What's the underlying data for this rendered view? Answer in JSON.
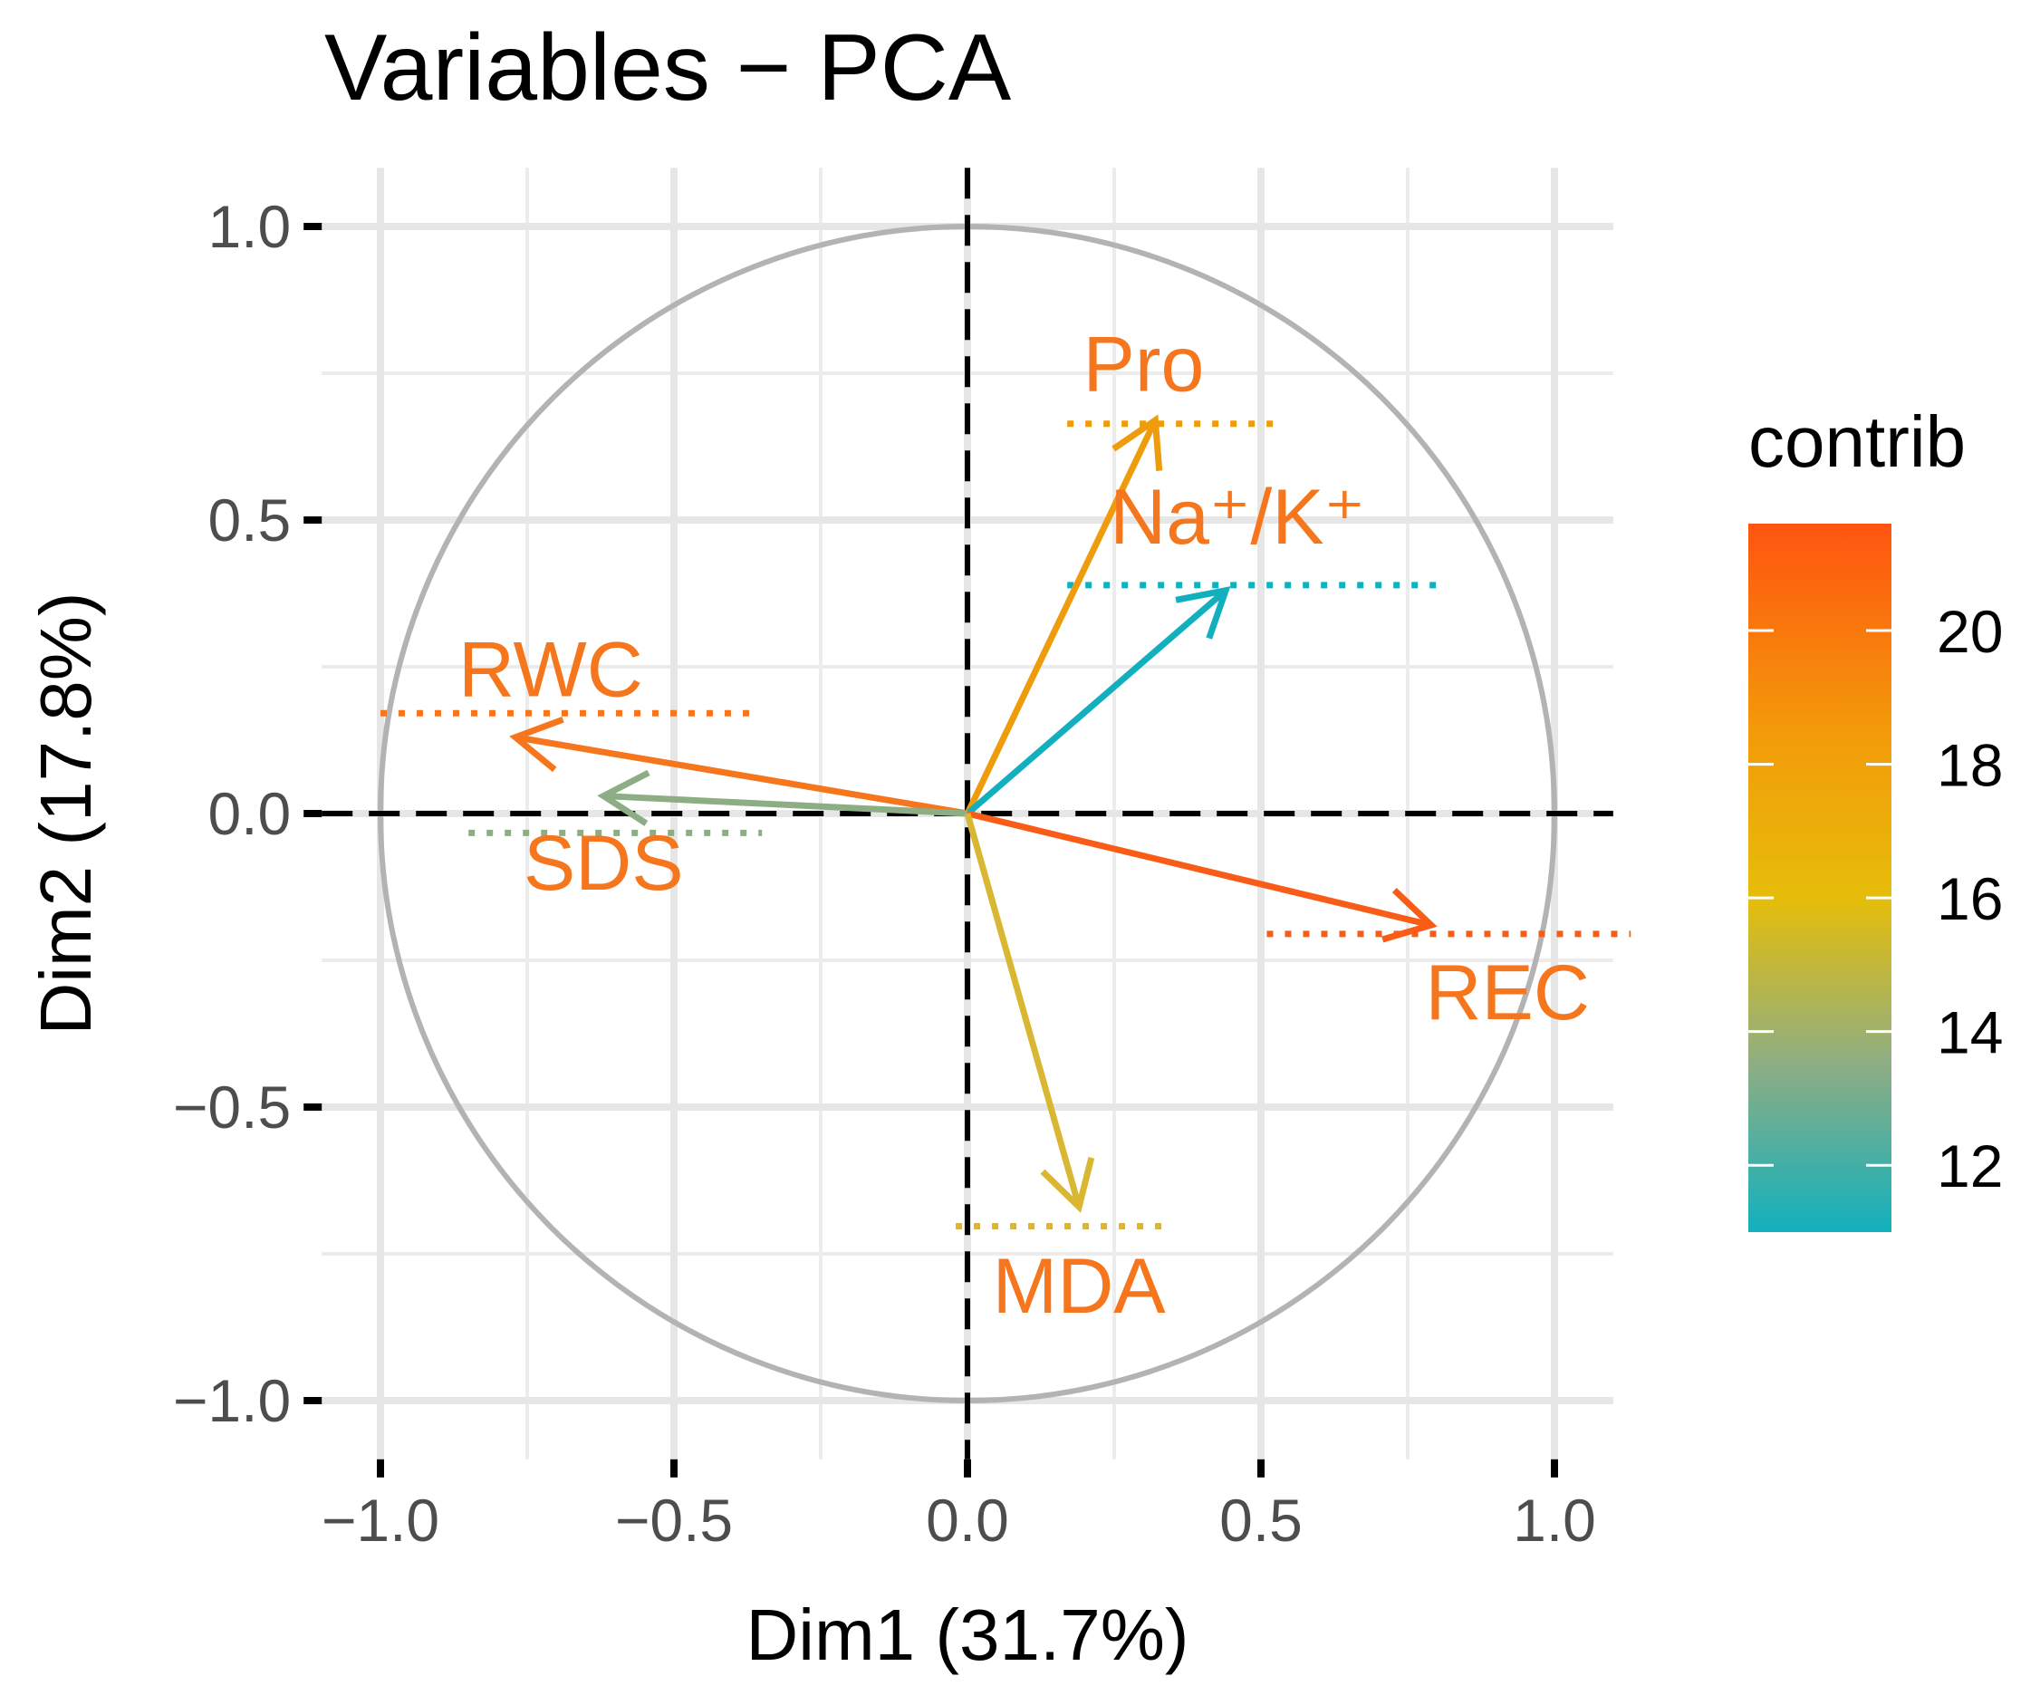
{
  "chart_data": {
    "type": "pca-variable-correlation-circle",
    "title": "Variables − PCA",
    "xlabel": "Dim1 (31.7%)",
    "ylabel": "Dim2 (17.8%)",
    "xlim": [
      -1.1,
      1.1
    ],
    "ylim": [
      -1.1,
      1.1
    ],
    "x_ticks": [
      {
        "value": -1.0,
        "label": "−1.0"
      },
      {
        "value": -0.5,
        "label": "−0.5"
      },
      {
        "value": 0.0,
        "label": "0.0"
      },
      {
        "value": 0.5,
        "label": "0.5"
      },
      {
        "value": 1.0,
        "label": "1.0"
      }
    ],
    "y_ticks": [
      {
        "value": 1.0,
        "label": "1.0"
      },
      {
        "value": 0.5,
        "label": "0.5"
      },
      {
        "value": 0.0,
        "label": "0.0"
      },
      {
        "value": -0.5,
        "label": "−0.5"
      },
      {
        "value": -1.0,
        "label": "−1.0"
      }
    ],
    "grid": true,
    "unit_circle": true,
    "variables": [
      {
        "name": "Pro",
        "x": 0.32,
        "y": 0.67,
        "contrib": 18.0,
        "color": "#EE9B0C"
      },
      {
        "name": "Na⁺/K⁺",
        "x": 0.44,
        "y": 0.38,
        "contrib": 11.0,
        "color": "#12B0BE"
      },
      {
        "name": "RWC",
        "x": -0.77,
        "y": 0.13,
        "contrib": 19.7,
        "color": "#F5761C"
      },
      {
        "name": "SDS",
        "x": -0.62,
        "y": 0.03,
        "contrib": 13.0,
        "color": "#8DAE84"
      },
      {
        "name": "REC",
        "x": 0.79,
        "y": -0.19,
        "contrib": 21.5,
        "color": "#F85C16"
      },
      {
        "name": "MDA",
        "x": 0.19,
        "y": -0.67,
        "contrib": 15.6,
        "color": "#D9B733"
      }
    ],
    "label_color": "#F5761C",
    "legend": {
      "title": "contrib",
      "placement": "right",
      "range": [
        11.0,
        21.6
      ],
      "ticks": [
        {
          "value": 20,
          "label": "20"
        },
        {
          "value": 18,
          "label": "18"
        },
        {
          "value": 16,
          "label": "16"
        },
        {
          "value": 14,
          "label": "14"
        },
        {
          "value": 12,
          "label": "12"
        }
      ],
      "gradient_stops": [
        {
          "value": 11.0,
          "color": "#12B0BE"
        },
        {
          "value": 13.5,
          "color": "#8DAE84"
        },
        {
          "value": 16.0,
          "color": "#E6BD0A"
        },
        {
          "value": 18.5,
          "color": "#F39A0A"
        },
        {
          "value": 21.6,
          "color": "#FF5410"
        }
      ]
    }
  }
}
